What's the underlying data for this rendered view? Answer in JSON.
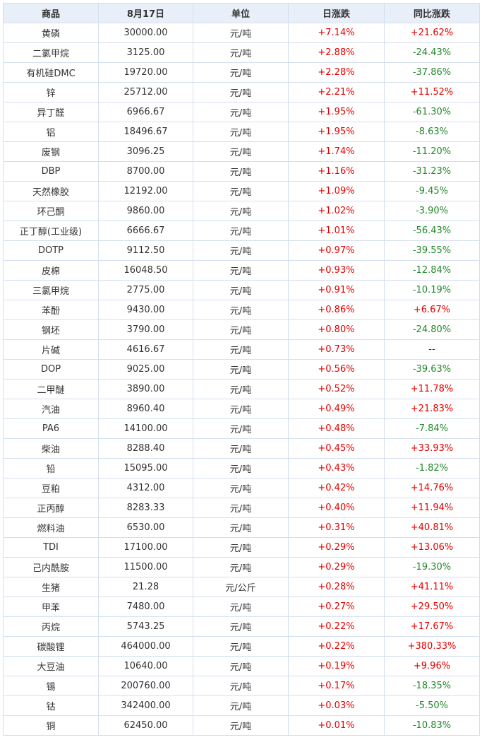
{
  "headers": [
    "商品",
    "8月17日",
    "单位",
    "日涨跌",
    "同比涨跌"
  ],
  "colors": {
    "up": "#e60000",
    "down": "#22882a",
    "header_bg": "#e9eff9",
    "border": "#d4dff0"
  },
  "rows": [
    {
      "name": "黄磷",
      "price": "30000.00",
      "unit": "元/吨",
      "day": "+7.14%",
      "yoy": "+21.62%"
    },
    {
      "name": "二氯甲烷",
      "price": "3125.00",
      "unit": "元/吨",
      "day": "+2.88%",
      "yoy": "-24.43%"
    },
    {
      "name": "有机硅DMC",
      "price": "19720.00",
      "unit": "元/吨",
      "day": "+2.28%",
      "yoy": "-37.86%"
    },
    {
      "name": "锌",
      "price": "25712.00",
      "unit": "元/吨",
      "day": "+2.21%",
      "yoy": "+11.52%"
    },
    {
      "name": "异丁醛",
      "price": "6966.67",
      "unit": "元/吨",
      "day": "+1.95%",
      "yoy": "-61.30%"
    },
    {
      "name": "铝",
      "price": "18496.67",
      "unit": "元/吨",
      "day": "+1.95%",
      "yoy": "-8.63%"
    },
    {
      "name": "废钢",
      "price": "3096.25",
      "unit": "元/吨",
      "day": "+1.74%",
      "yoy": "-11.20%"
    },
    {
      "name": "DBP",
      "price": "8700.00",
      "unit": "元/吨",
      "day": "+1.16%",
      "yoy": "-31.23%"
    },
    {
      "name": "天然橡胶",
      "price": "12192.00",
      "unit": "元/吨",
      "day": "+1.09%",
      "yoy": "-9.45%"
    },
    {
      "name": "环己酮",
      "price": "9860.00",
      "unit": "元/吨",
      "day": "+1.02%",
      "yoy": "-3.90%"
    },
    {
      "name": "正丁醇(工业级)",
      "price": "6666.67",
      "unit": "元/吨",
      "day": "+1.01%",
      "yoy": "-56.43%"
    },
    {
      "name": "DOTP",
      "price": "9112.50",
      "unit": "元/吨",
      "day": "+0.97%",
      "yoy": "-39.55%"
    },
    {
      "name": "皮棉",
      "price": "16048.50",
      "unit": "元/吨",
      "day": "+0.93%",
      "yoy": "-12.84%"
    },
    {
      "name": "三氯甲烷",
      "price": "2775.00",
      "unit": "元/吨",
      "day": "+0.91%",
      "yoy": "-10.19%"
    },
    {
      "name": "苯酚",
      "price": "9430.00",
      "unit": "元/吨",
      "day": "+0.86%",
      "yoy": "+6.67%"
    },
    {
      "name": "钢坯",
      "price": "3790.00",
      "unit": "元/吨",
      "day": "+0.80%",
      "yoy": "-24.80%"
    },
    {
      "name": "片碱",
      "price": "4616.67",
      "unit": "元/吨",
      "day": "+0.73%",
      "yoy": "--"
    },
    {
      "name": "DOP",
      "price": "9025.00",
      "unit": "元/吨",
      "day": "+0.56%",
      "yoy": "-39.63%"
    },
    {
      "name": "二甲醚",
      "price": "3890.00",
      "unit": "元/吨",
      "day": "+0.52%",
      "yoy": "+11.78%"
    },
    {
      "name": "汽油",
      "price": "8960.40",
      "unit": "元/吨",
      "day": "+0.49%",
      "yoy": "+21.83%"
    },
    {
      "name": "PA6",
      "price": "14100.00",
      "unit": "元/吨",
      "day": "+0.48%",
      "yoy": "-7.84%"
    },
    {
      "name": "柴油",
      "price": "8288.40",
      "unit": "元/吨",
      "day": "+0.45%",
      "yoy": "+33.93%"
    },
    {
      "name": "铅",
      "price": "15095.00",
      "unit": "元/吨",
      "day": "+0.43%",
      "yoy": "-1.82%"
    },
    {
      "name": "豆粕",
      "price": "4312.00",
      "unit": "元/吨",
      "day": "+0.42%",
      "yoy": "+14.76%"
    },
    {
      "name": "正丙醇",
      "price": "8283.33",
      "unit": "元/吨",
      "day": "+0.40%",
      "yoy": "+11.94%"
    },
    {
      "name": "燃料油",
      "price": "6530.00",
      "unit": "元/吨",
      "day": "+0.31%",
      "yoy": "+40.81%"
    },
    {
      "name": "TDI",
      "price": "17100.00",
      "unit": "元/吨",
      "day": "+0.29%",
      "yoy": "+13.06%"
    },
    {
      "name": "己内酰胺",
      "price": "11500.00",
      "unit": "元/吨",
      "day": "+0.29%",
      "yoy": "-19.30%"
    },
    {
      "name": "生猪",
      "price": "21.28",
      "unit": "元/公斤",
      "day": "+0.28%",
      "yoy": "+41.11%"
    },
    {
      "name": "甲苯",
      "price": "7480.00",
      "unit": "元/吨",
      "day": "+0.27%",
      "yoy": "+29.50%"
    },
    {
      "name": "丙烷",
      "price": "5743.25",
      "unit": "元/吨",
      "day": "+0.22%",
      "yoy": "+17.67%"
    },
    {
      "name": "碳酸锂",
      "price": "464000.00",
      "unit": "元/吨",
      "day": "+0.22%",
      "yoy": "+380.33%"
    },
    {
      "name": "大豆油",
      "price": "10640.00",
      "unit": "元/吨",
      "day": "+0.19%",
      "yoy": "+9.96%"
    },
    {
      "name": "锡",
      "price": "200760.00",
      "unit": "元/吨",
      "day": "+0.17%",
      "yoy": "-18.35%"
    },
    {
      "name": "钴",
      "price": "342400.00",
      "unit": "元/吨",
      "day": "+0.03%",
      "yoy": "-5.50%"
    },
    {
      "name": "铜",
      "price": "62450.00",
      "unit": "元/吨",
      "day": "+0.01%",
      "yoy": "-10.83%"
    }
  ]
}
